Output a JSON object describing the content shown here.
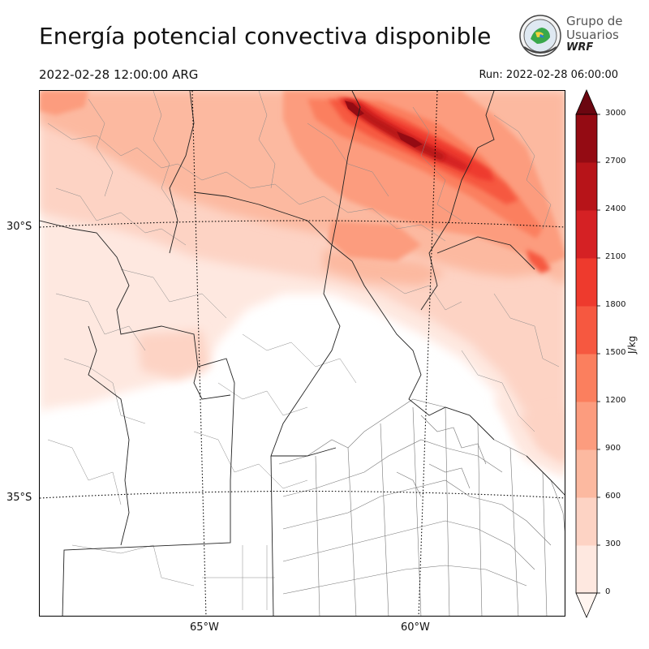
{
  "title": "Energía potencial convectiva disponible",
  "valid_time": "2022-02-28 12:00:00 ARG",
  "run_time": "Run: 2022-02-28 06:00:00",
  "logo": {
    "line1": "Grupo de",
    "line2": "Usuarios",
    "line3": "WRF"
  },
  "map": {
    "latitude_labels": [
      "30°S",
      "35°S"
    ],
    "longitude_labels": [
      "65°W",
      "60°W"
    ]
  },
  "colorbar": {
    "unit": "J/kg",
    "ticks": [
      "0",
      "300",
      "600",
      "900",
      "1200",
      "1500",
      "1800",
      "2100",
      "2400",
      "2700",
      "3000"
    ],
    "colors": [
      "#fee8e0",
      "#fdd3c4",
      "#fcb9a0",
      "#fc9c7e",
      "#fb7f5e",
      "#f65840",
      "#ee3a2d",
      "#d52124",
      "#b71419",
      "#940b13",
      "#6b0610"
    ],
    "extend": "both"
  }
}
